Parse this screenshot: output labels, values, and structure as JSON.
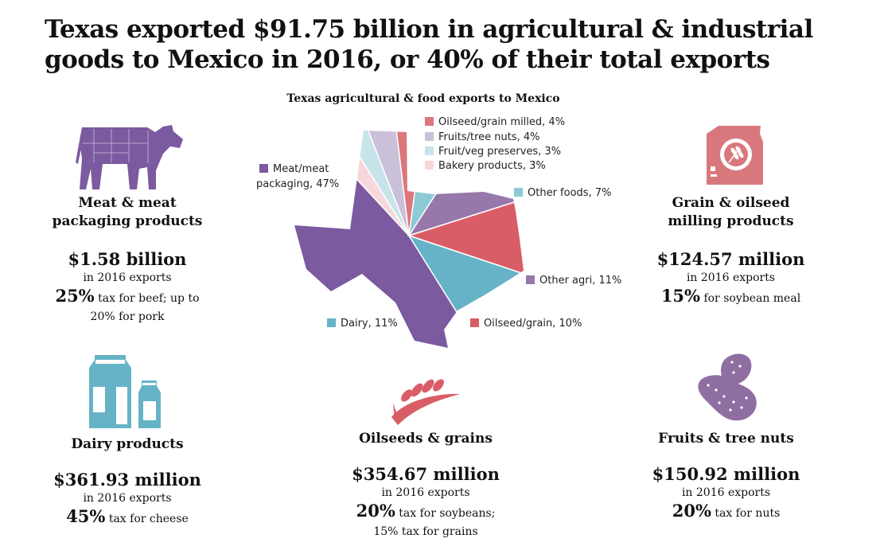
{
  "title": {
    "line1": "Texas exported $91.75 billion in agricultural & industrial",
    "line2": "goods to Mexico in 2016, or 40% of their total exports"
  },
  "chart_data": {
    "type": "pie",
    "title": "Texas agricultural & food exports to Mexico",
    "slices": [
      {
        "label": "Meat/meat packaging",
        "value": 47,
        "color": "#7b5aa0"
      },
      {
        "label": "Bakery products",
        "value": 3,
        "color": "#f7d7dc"
      },
      {
        "label": "Fruit/veg preserves",
        "value": 3,
        "color": "#c6e4ea"
      },
      {
        "label": "Fruits/tree nuts",
        "value": 4,
        "color": "#cbc0d9"
      },
      {
        "label": "Oilseed/grain milled",
        "value": 4,
        "color": "#dc777c"
      },
      {
        "label": "Other foods",
        "value": 7,
        "color": "#8ccad6"
      },
      {
        "label": "Other agri",
        "value": 11,
        "color": "#9778aa"
      },
      {
        "label": "Oilseed/grain",
        "value": 10,
        "color": "#d95d66"
      },
      {
        "label": "Dairy",
        "value": 11,
        "color": "#66b3c7"
      }
    ]
  },
  "blocks": {
    "meat": {
      "head1": "Meat & meat",
      "head2": "packaging products",
      "amount": "$1.58 billion",
      "sub": "in 2016 exports",
      "pct": "25%",
      "tax": " tax for beef; up to",
      "extra": "20% for pork"
    },
    "grain": {
      "head1": "Grain & oilseed",
      "head2": "milling products",
      "amount": "$124.57 million",
      "sub": "in 2016 exports",
      "pct": "15%",
      "tax": " for soybean meal"
    },
    "dairy": {
      "head": "Dairy products",
      "amount": "$361.93 million",
      "sub": "in 2016 exports",
      "pct": "45%",
      "tax": " tax for cheese"
    },
    "oilseeds": {
      "head": "Oilseeds & grains",
      "amount": "$354.67 million",
      "sub": "in 2016 exports",
      "pct": "20%",
      "tax": " tax for soybeans;",
      "extra": "15% tax for grains"
    },
    "fruits": {
      "head": "Fruits & tree nuts",
      "amount": "$150.92 million",
      "sub": "in 2016 exports",
      "pct": "20%",
      "tax": " tax for nuts"
    }
  },
  "icons": {
    "meat": "cow-icon",
    "grain": "flour-sack-icon",
    "dairy": "milk-bottles-icon",
    "oilseeds": "wheat-grains-icon",
    "fruits": "peanuts-icon"
  },
  "colors": {
    "purple": "#7b5aa0",
    "flour_pink": "#d9787c",
    "teal": "#66b3c7",
    "red": "#d95d66",
    "nut_purple": "#8f6ea1"
  }
}
